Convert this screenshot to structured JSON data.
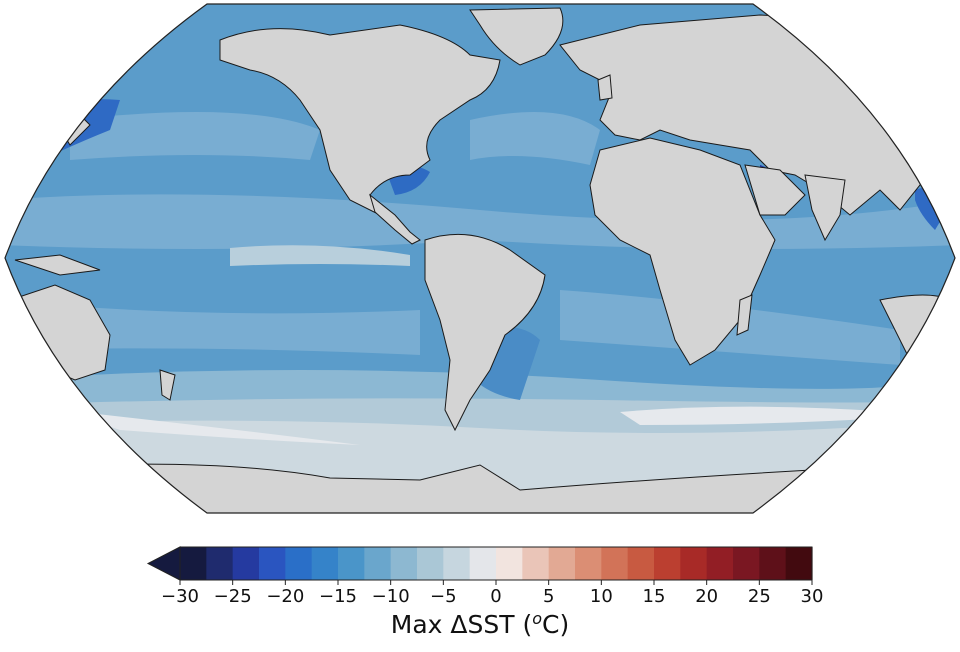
{
  "map": {
    "projection": "Robinson",
    "land_color": "#d4d4d4",
    "coastline_color": "#1a1a1a"
  },
  "colorbar": {
    "title_prefix": "Max ΔSST (",
    "title_unit_sup": "o",
    "title_suffix": "C)",
    "extend": "min",
    "bins": [
      -30,
      -27.5,
      -25,
      -22.5,
      -20,
      -17.5,
      -15,
      -12.5,
      -10,
      -7.5,
      -5,
      -2.5,
      0,
      2.5,
      5,
      7.5,
      10,
      12.5,
      15,
      17.5,
      20,
      22.5,
      25,
      27.5,
      30
    ],
    "colors": [
      "#151a3f",
      "#1f2b6e",
      "#253aa0",
      "#2a55c0",
      "#2a6fc8",
      "#3583c9",
      "#4a95c9",
      "#6aa6cc",
      "#8db8d1",
      "#aac7d6",
      "#c6d6df",
      "#e4e6ea",
      "#f2e4df",
      "#eac5b8",
      "#e2a994",
      "#db8e74",
      "#d27358",
      "#c85a41",
      "#bb3f30",
      "#a82a27",
      "#921e25",
      "#7a1722",
      "#5e1019",
      "#420a0f"
    ],
    "ticks": [
      "−30",
      "−25",
      "−20",
      "−15",
      "−10",
      "−5",
      "0",
      "5",
      "10",
      "15",
      "20",
      "25",
      "30"
    ]
  }
}
